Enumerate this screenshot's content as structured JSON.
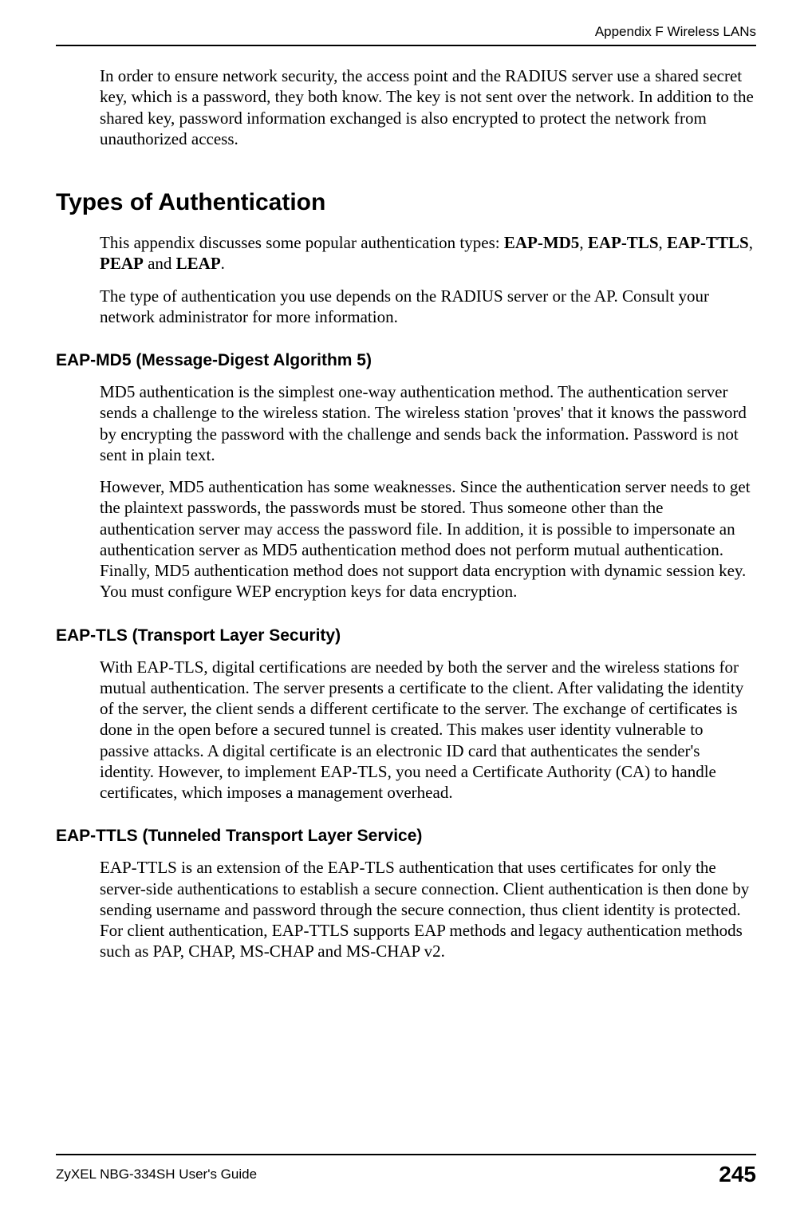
{
  "header": {
    "text": "Appendix F Wireless LANs"
  },
  "footer": {
    "guide": "ZyXEL NBG-334SH User's Guide",
    "page": "245"
  },
  "intro": {
    "p1": "In order to ensure network security, the access point and the RADIUS server use a shared secret key, which is a password, they both know. The key is not sent over the network. In addition to the shared key, password information exchanged is also encrypted to protect the network from unauthorized access."
  },
  "section": {
    "title": "Types of Authentication",
    "p1_prefix": "This appendix discusses some popular authentication types: ",
    "t1": "EAP-MD5",
    "sep1": ", ",
    "t2": "EAP-TLS",
    "sep2": ", ",
    "t3": "EAP-TTLS",
    "sep3": ", ",
    "t4": "PEAP",
    "sep4": " and ",
    "t5": "LEAP",
    "p1_suffix": ".",
    "p2": "The type of authentication you use depends on the RADIUS server or the AP. Consult your network administrator for more information."
  },
  "md5": {
    "title": "EAP-MD5 (Message-Digest Algorithm 5)",
    "p1": "MD5 authentication is the simplest one-way authentication method. The authentication server sends a challenge to the wireless station. The wireless station 'proves' that it knows the password by encrypting the password with the challenge and sends back the information. Password is not sent in plain text.",
    "p2": "However, MD5 authentication has some weaknesses. Since the authentication server needs to get the plaintext passwords, the passwords must be stored. Thus someone other than the authentication server may access the password file. In addition, it is possible to impersonate an authentication server as MD5 authentication method does not perform mutual authentication. Finally, MD5 authentication method does not support data encryption with dynamic session key. You must configure WEP encryption keys for data encryption."
  },
  "tls": {
    "title": "EAP-TLS (Transport Layer Security)",
    "p1": "With EAP-TLS, digital certifications are needed by both the server and the wireless stations for mutual authentication. The server presents a certificate to the client. After validating the identity of the server, the client sends a different certificate to the server. The exchange of certificates is done in the open before a secured tunnel is created. This makes user identity vulnerable to passive attacks. A digital certificate is an electronic ID card that authenticates the sender's identity. However, to implement EAP-TLS, you need a Certificate Authority (CA) to handle certificates, which imposes a management overhead."
  },
  "ttls": {
    "title": "EAP-TTLS (Tunneled Transport Layer Service)",
    "p1": "EAP-TTLS is an extension of the EAP-TLS authentication that uses certificates for only the server-side authentications to establish a secure connection. Client authentication is then done by sending username and password through the secure connection, thus client identity is protected. For client authentication, EAP-TTLS supports EAP methods and legacy authentication methods such as PAP, CHAP, MS-CHAP and MS-CHAP v2."
  }
}
